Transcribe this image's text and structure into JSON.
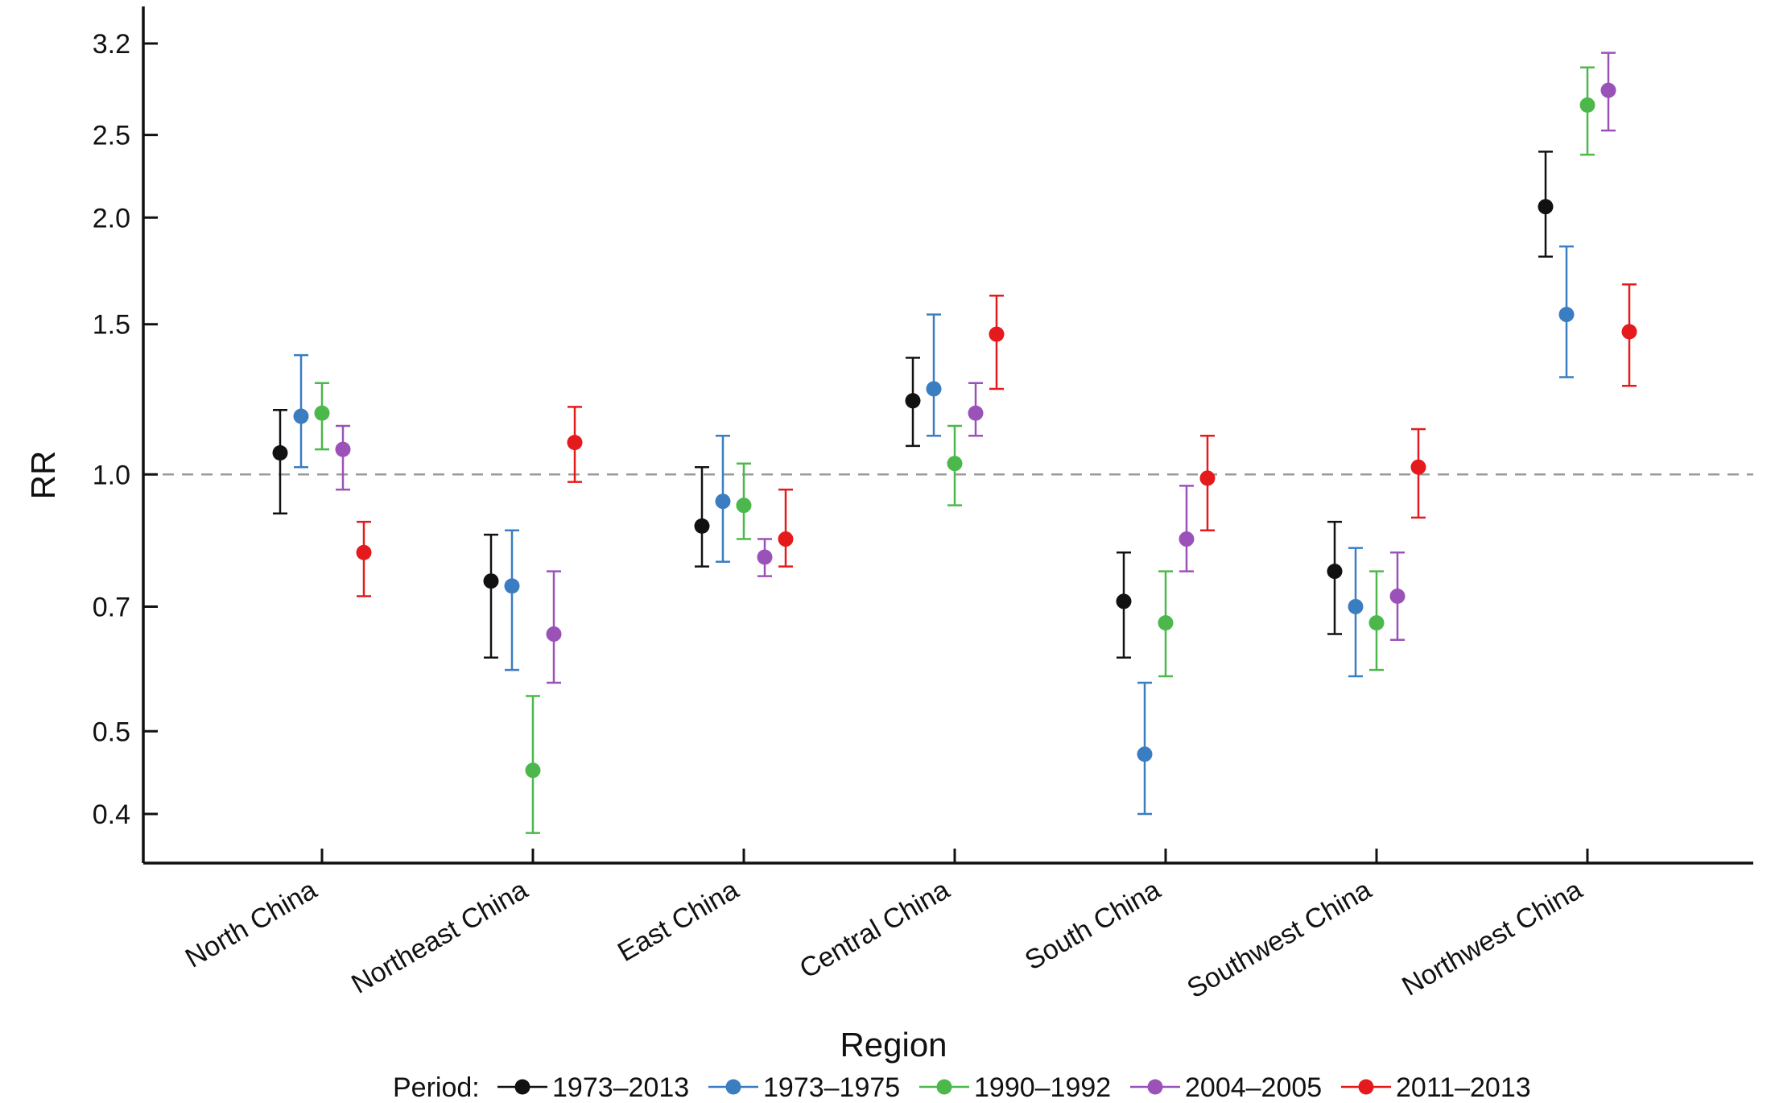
{
  "chart_data": {
    "type": "scatter",
    "subtype": "point-with-error-bars",
    "title": "",
    "xlabel": "Region",
    "ylabel": "RR",
    "y_scale": "log",
    "ylim": [
      0.37,
      3.5
    ],
    "y_ticks": [
      0.4,
      0.5,
      0.7,
      1.0,
      1.5,
      2.0,
      2.5,
      3.2
    ],
    "y_tick_labels": [
      "0.4",
      "0.5",
      "0.7",
      "1.0",
      "1.5",
      "2.0",
      "2.5",
      "3.2"
    ],
    "reference_line": {
      "y": 1.0,
      "style": "dashed",
      "color": "#9a9a9a"
    },
    "grid": false,
    "categories": [
      "North China",
      "Northeast China",
      "East China",
      "Central China",
      "South China",
      "Southwest China",
      "Northwest China"
    ],
    "legend": {
      "title": "Period:",
      "position": "bottom"
    },
    "series": [
      {
        "name": "1973–2013",
        "color": "#111111",
        "values": [
          1.06,
          0.75,
          0.87,
          1.22,
          0.71,
          0.77,
          2.06
        ],
        "lower": [
          0.9,
          0.61,
          0.78,
          1.08,
          0.61,
          0.65,
          1.8
        ],
        "upper": [
          1.19,
          0.85,
          1.02,
          1.37,
          0.81,
          0.88,
          2.39
        ]
      },
      {
        "name": "1973–1975",
        "color": "#3a7dc0",
        "values": [
          1.17,
          0.74,
          0.93,
          1.26,
          0.47,
          0.7,
          1.54
        ],
        "lower": [
          1.02,
          0.59,
          0.79,
          1.11,
          0.4,
          0.58,
          1.3
        ],
        "upper": [
          1.38,
          0.86,
          1.11,
          1.54,
          0.57,
          0.82,
          1.85
        ]
      },
      {
        "name": "1990–1992",
        "color": "#4cb84c",
        "values": [
          1.18,
          0.45,
          0.92,
          1.03,
          0.67,
          0.67,
          2.71
        ],
        "lower": [
          1.07,
          0.38,
          0.84,
          0.92,
          0.58,
          0.59,
          2.37
        ],
        "upper": [
          1.28,
          0.55,
          1.03,
          1.14,
          0.77,
          0.77,
          3.0
        ]
      },
      {
        "name": "2004–2005",
        "color": "#9b52b8",
        "values": [
          1.07,
          0.65,
          0.8,
          1.18,
          0.84,
          0.72,
          2.82
        ],
        "lower": [
          0.96,
          0.57,
          0.76,
          1.11,
          0.77,
          0.64,
          2.53
        ],
        "upper": [
          1.14,
          0.77,
          0.84,
          1.28,
          0.97,
          0.81,
          3.12
        ]
      },
      {
        "name": "2011–2013",
        "color": "#e41a1c",
        "values": [
          0.81,
          1.09,
          0.84,
          1.46,
          0.99,
          1.02,
          1.47
        ],
        "lower": [
          0.72,
          0.98,
          0.78,
          1.26,
          0.86,
          0.89,
          1.27
        ],
        "upper": [
          0.88,
          1.2,
          0.96,
          1.62,
          1.11,
          1.13,
          1.67
        ]
      }
    ]
  }
}
